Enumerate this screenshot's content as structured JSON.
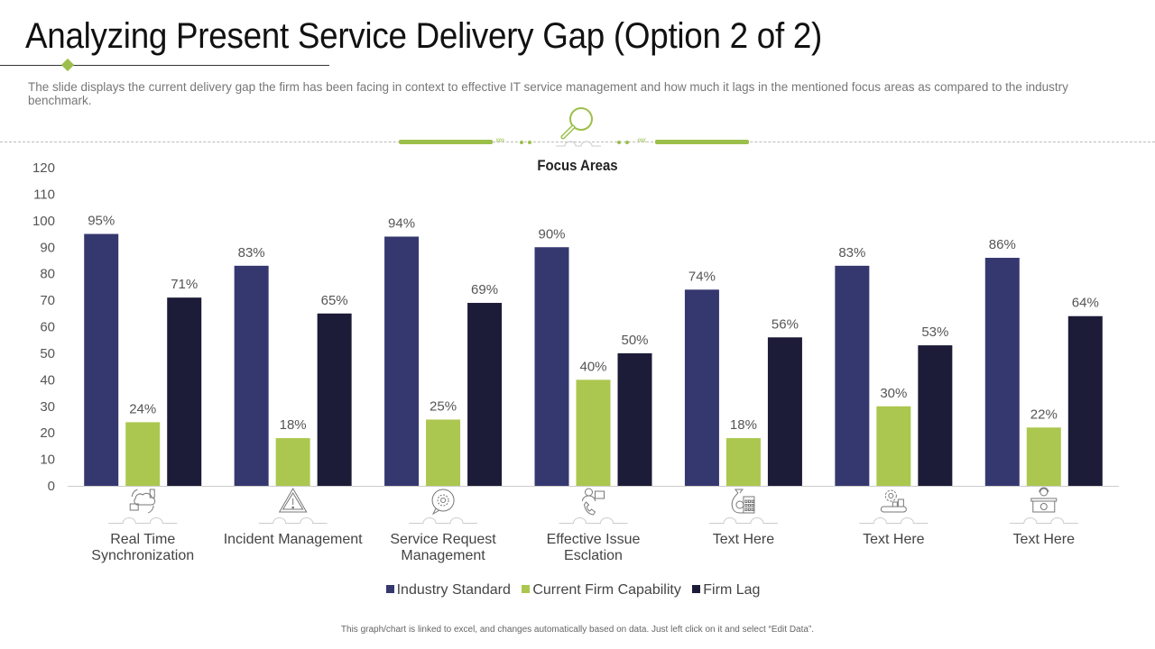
{
  "header": {
    "title": "Analyzing Present Service Delivery Gap (Option 2 of 2)",
    "subtitle": "The slide displays the current delivery gap the firm has been facing in context to effective IT service management and how much it lags in the mentioned focus areas as compared to the industry benchmark."
  },
  "colors": {
    "industry_standard": "#35386f",
    "current_firm_capability": "#abc74f",
    "firm_lag": "#1c1c38",
    "accent": "#9bbf4a"
  },
  "chart_data": {
    "type": "bar",
    "title": "Focus Areas",
    "xlabel": "",
    "ylabel": "",
    "ylim": [
      0,
      120
    ],
    "yticks": [
      0,
      10,
      20,
      30,
      40,
      50,
      60,
      70,
      80,
      90,
      100,
      110,
      120
    ],
    "grid": false,
    "legend_position": "bottom",
    "categories": [
      "Real Time Synchronization",
      "Incident Management",
      "Service Request Management",
      "Effective Issue Esclation",
      "Text Here",
      "Text Here",
      "Text Here"
    ],
    "category_lines": [
      [
        "Real Time",
        "Synchronization"
      ],
      [
        "Incident Management"
      ],
      [
        "Service Request",
        "Management"
      ],
      [
        "Effective Issue",
        "Esclation"
      ],
      [
        "Text Here"
      ],
      [
        "Text Here"
      ],
      [
        "Text Here"
      ]
    ],
    "category_icons": [
      "cloud-sync-devices-icon",
      "warning-triangle-icon",
      "gear-chat-bubble-icon",
      "support-agent-phone-icon",
      "money-bag-calculator-icon",
      "gear-conveyor-icon",
      "helpdesk-agent-icon"
    ],
    "series": [
      {
        "name": "Industry Standard",
        "values": [
          95,
          83,
          94,
          90,
          74,
          83,
          86
        ],
        "labels": [
          "95%",
          "83%",
          "94%",
          "90%",
          "74%",
          "83%",
          "86%"
        ]
      },
      {
        "name": "Current Firm Capability",
        "values": [
          24,
          18,
          25,
          40,
          18,
          30,
          22
        ],
        "labels": [
          "24%",
          "18%",
          "25%",
          "40%",
          "18%",
          "30%",
          "22%"
        ]
      },
      {
        "name": "Firm Lag",
        "values": [
          71,
          65,
          69,
          50,
          56,
          53,
          64
        ],
        "labels": [
          "71%",
          "65%",
          "69%",
          "50%",
          "56%",
          "53%",
          "64%"
        ]
      }
    ]
  },
  "legend": {
    "items": [
      "Industry Standard",
      "Current Firm Capability",
      "Firm Lag"
    ]
  },
  "footer": {
    "note": "This graph/chart is linked to excel, and changes automatically based on data. Just left click on it and select “Edit Data”."
  }
}
